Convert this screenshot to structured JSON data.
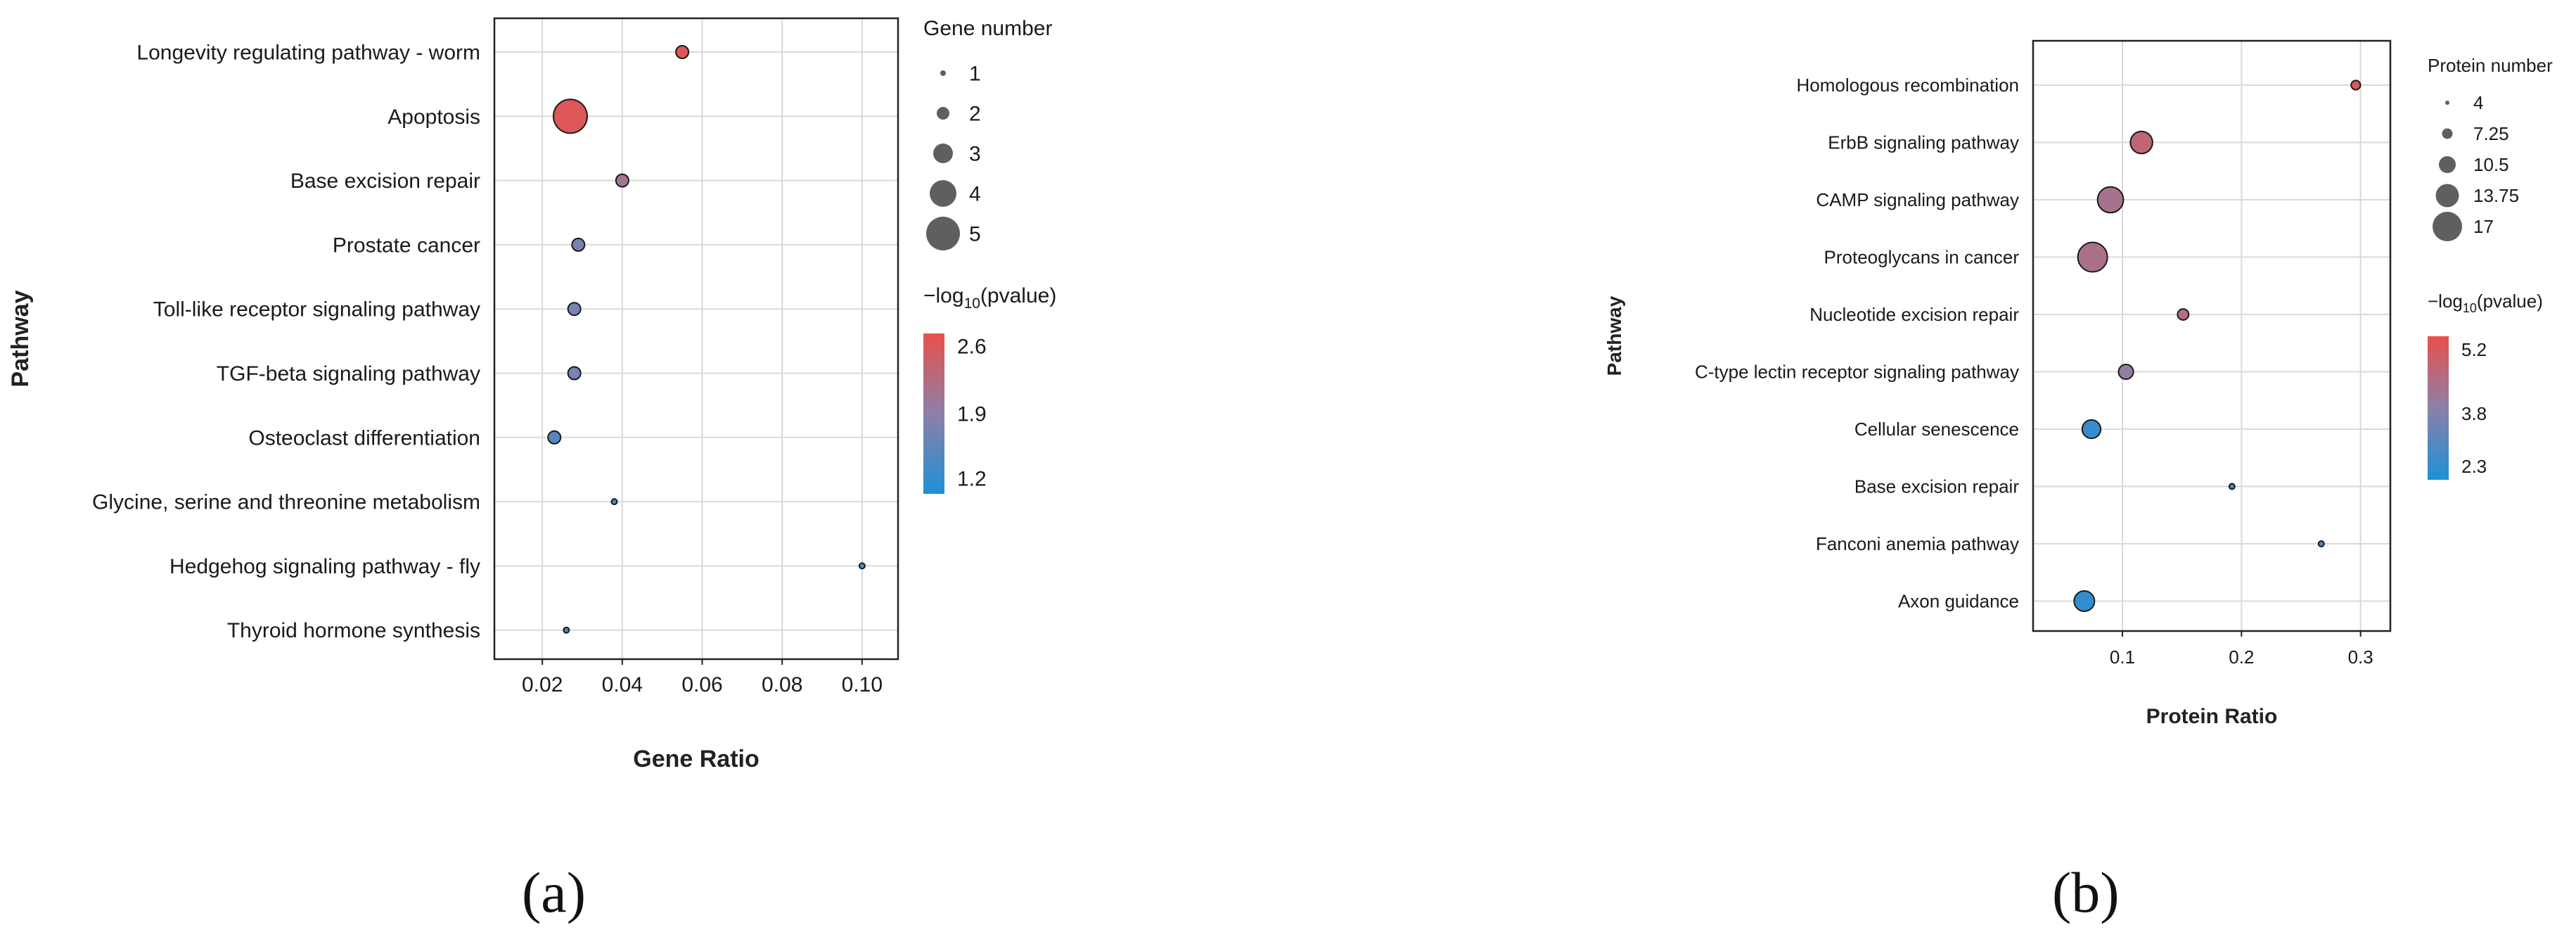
{
  "panel_labels": [
    "(a)",
    "(b)"
  ],
  "chart_data": [
    {
      "type": "scatter",
      "subtype": "bubble",
      "panel": "(a)",
      "xlabel": "Gene Ratio",
      "ylabel": "Pathway",
      "xlim": [
        0.008,
        0.109
      ],
      "xticks": [
        "0.02",
        "0.04",
        "0.06",
        "0.08",
        "0.10"
      ],
      "xtick_values": [
        0.02,
        0.04,
        0.06,
        0.08,
        0.1
      ],
      "grid": true,
      "categories": [
        "Longevity regulating pathway - worm",
        "Apoptosis",
        "Base excision repair",
        "Prostate cancer",
        "Toll-like receptor signaling pathway",
        "TGF-beta signaling pathway",
        "Osteoclast differentiation",
        "Glycine, serine and threonine metabolism",
        "Hedgehog signaling pathway - fly",
        "Thyroid hormone synthesis"
      ],
      "points": [
        {
          "y": "Longevity regulating pathway - worm",
          "x": 0.055,
          "size": 2,
          "color_value": 2.6
        },
        {
          "y": "Apoptosis",
          "x": 0.027,
          "size": 5,
          "color_value": 2.6
        },
        {
          "y": "Base excision repair",
          "x": 0.04,
          "size": 2,
          "color_value": 2.1
        },
        {
          "y": "Prostate cancer",
          "x": 0.029,
          "size": 2,
          "color_value": 1.75
        },
        {
          "y": "Toll-like receptor signaling pathway",
          "x": 0.028,
          "size": 2,
          "color_value": 1.75
        },
        {
          "y": "TGF-beta signaling pathway",
          "x": 0.028,
          "size": 2,
          "color_value": 1.75
        },
        {
          "y": "Osteoclast differentiation",
          "x": 0.023,
          "size": 2,
          "color_value": 1.5
        },
        {
          "y": "Glycine, serine and threonine metabolism",
          "x": 0.038,
          "size": 1,
          "color_value": 1.3
        },
        {
          "y": "Hedgehog signaling pathway - fly",
          "x": 0.1,
          "size": 1,
          "color_value": 1.45
        },
        {
          "y": "Thyroid hormone synthesis",
          "x": 0.026,
          "size": 1,
          "color_value": 1.2
        }
      ],
      "size_legend": {
        "title": "Gene number",
        "values": [
          1,
          2,
          3,
          4,
          5
        ],
        "labels": [
          "1",
          "2",
          "3",
          "4",
          "5"
        ]
      },
      "color_legend": {
        "title_prefix": "−log",
        "title_sub": "10",
        "title_suffix": "(pvalue)",
        "ticks": [
          "2.6",
          "1.9",
          "1.2"
        ],
        "tick_values": [
          2.6,
          1.9,
          1.2
        ],
        "range": [
          1.1,
          2.7
        ],
        "low_color": "#1e90d6",
        "mid_color": "#8c80a8",
        "high_color": "#e8504c"
      }
    },
    {
      "type": "scatter",
      "subtype": "bubble",
      "panel": "(b)",
      "xlabel": "Protein Ratio",
      "ylabel": "Pathway",
      "xlim": [
        0.025,
        0.325
      ],
      "xticks": [
        "0.1",
        "0.2",
        "0.3"
      ],
      "xtick_values": [
        0.1,
        0.2,
        0.3
      ],
      "grid": true,
      "categories": [
        "Homologous recombination",
        "ErbB signaling pathway",
        "CAMP signaling pathway",
        "Proteoglycans in cancer",
        "Nucleotide excision repair",
        "C-type lectin receptor signaling pathway",
        "Cellular senescence",
        "Base excision repair",
        "Fanconi anemia pathway",
        "Axon guidance"
      ],
      "points": [
        {
          "y": "Homologous recombination",
          "x": 0.296,
          "size": 6,
          "color_value": 5.2
        },
        {
          "y": "ErbB signaling pathway",
          "x": 0.116,
          "size": 13,
          "color_value": 4.7
        },
        {
          "y": "CAMP signaling pathway",
          "x": 0.09,
          "size": 15,
          "color_value": 4.2
        },
        {
          "y": "Proteoglycans in cancer",
          "x": 0.075,
          "size": 17,
          "color_value": 4.3
        },
        {
          "y": "Nucleotide excision repair",
          "x": 0.151,
          "size": 7,
          "color_value": 4.4
        },
        {
          "y": "C-type lectin receptor signaling pathway",
          "x": 0.103,
          "size": 9,
          "color_value": 3.8
        },
        {
          "y": "Cellular senescence",
          "x": 0.074,
          "size": 11,
          "color_value": 2.3
        },
        {
          "y": "Base excision repair",
          "x": 0.192,
          "size": 4,
          "color_value": 2.4
        },
        {
          "y": "Fanconi anemia pathway",
          "x": 0.267,
          "size": 4,
          "color_value": 2.7
        },
        {
          "y": "Axon guidance",
          "x": 0.068,
          "size": 12,
          "color_value": 2.2
        }
      ],
      "size_legend": {
        "title": "Protein number",
        "values": [
          4,
          7.25,
          10.5,
          13.75,
          17
        ],
        "labels": [
          "4",
          "7.25",
          "10.5",
          "13.75",
          "17"
        ]
      },
      "color_legend": {
        "title_prefix": "−log",
        "title_sub": "10",
        "title_suffix": "(pvalue)",
        "ticks": [
          "5.2",
          "3.8",
          "2.3"
        ],
        "tick_values": [
          5.2,
          3.8,
          2.3
        ],
        "range": [
          1.9,
          5.5
        ],
        "low_color": "#1e90d6",
        "mid_color": "#8c80a8",
        "high_color": "#e8504c"
      }
    }
  ]
}
